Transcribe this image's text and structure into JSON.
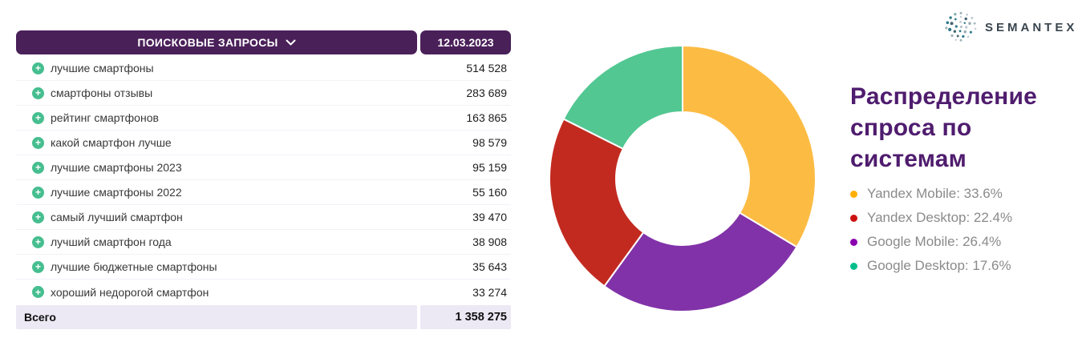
{
  "table": {
    "header": {
      "title": "ПОИСКОВЫЕ ЗАПРОСЫ",
      "date": "12.03.2023"
    },
    "rows": [
      {
        "query": "лучшие смартфоны",
        "value": "514 528"
      },
      {
        "query": "смартфоны отзывы",
        "value": "283 689"
      },
      {
        "query": "рейтинг смартфонов",
        "value": "163 865"
      },
      {
        "query": "какой смартфон лучше",
        "value": "98 579"
      },
      {
        "query": "лучшие смартфоны 2023",
        "value": "95 159"
      },
      {
        "query": "лучшие смартфоны 2022",
        "value": "55 160"
      },
      {
        "query": "самый лучший смартфон",
        "value": "39 470"
      },
      {
        "query": "лучший смартфон года",
        "value": "38 908"
      },
      {
        "query": "лучшие бюджетные смартфоны",
        "value": "35 643"
      },
      {
        "query": "хороший недорогой смартфон",
        "value": "33 274"
      }
    ],
    "total": {
      "label": "Всего",
      "value": "1 358 275"
    }
  },
  "chart_data": {
    "type": "pie",
    "subtype": "donut",
    "title": "Распределение спроса по системам",
    "series": [
      {
        "label": "Yandex Mobile",
        "value": 33.6,
        "color": "#FCBC44",
        "dot_color": "#FFAF00"
      },
      {
        "label": "Yandex Desktop",
        "value": 22.4,
        "color": "#C22A20",
        "dot_color": "#CC1111"
      },
      {
        "label": "Google Mobile",
        "value": 26.4,
        "color": "#8132A8",
        "dot_color": "#8A00AF"
      },
      {
        "label": "Google Desktop",
        "value": 17.6,
        "color": "#52C792",
        "dot_color": "#00BE8C"
      }
    ],
    "draw_order": [
      0,
      2,
      1,
      3
    ],
    "start_angle_deg": 0,
    "direction": "clockwise",
    "inner_radius_ratio": 0.5,
    "legend_position": "right",
    "legend_format": "{label}: {value}%"
  },
  "logo": {
    "text": "SEMANTEX"
  },
  "colors": {
    "header_bg": "#4A2059",
    "plus_icon": "#46BE8F",
    "total_row_bg": "#ECE9F4",
    "title_color": "#4F1C6E"
  }
}
